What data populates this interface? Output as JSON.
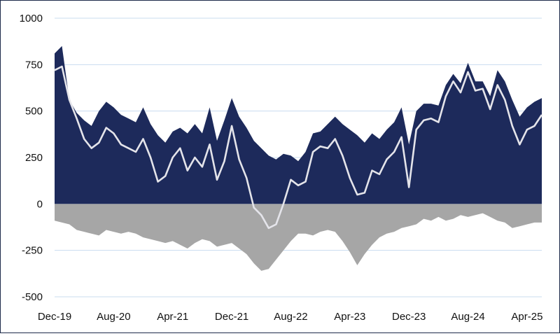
{
  "chart_data": {
    "type": "area",
    "title": "",
    "xlabel": "",
    "ylabel": "",
    "ylim": [
      -500,
      1000
    ],
    "yticks": [
      1000,
      750,
      500,
      250,
      0,
      -250,
      -500
    ],
    "xticks": [
      "Dec-19",
      "Aug-20",
      "Apr-21",
      "Dec-21",
      "Aug-22",
      "Apr-23",
      "Dec-23",
      "Aug-24",
      "Apr-25"
    ],
    "grid": true,
    "legend": "none",
    "colors": {
      "long": "#1d2a5b",
      "short": "#a6a6a6",
      "net": "#e4e4ea",
      "grid": "#c9dcef"
    },
    "x_dates": [
      "2019-12",
      "2020-01",
      "2020-02",
      "2020-03",
      "2020-04",
      "2020-05",
      "2020-06",
      "2020-07",
      "2020-08",
      "2020-09",
      "2020-10",
      "2020-11",
      "2020-12",
      "2021-01",
      "2021-02",
      "2021-03",
      "2021-04",
      "2021-05",
      "2021-06",
      "2021-07",
      "2021-08",
      "2021-09",
      "2021-10",
      "2021-11",
      "2021-12",
      "2022-01",
      "2022-02",
      "2022-03",
      "2022-04",
      "2022-05",
      "2022-06",
      "2022-07",
      "2022-08",
      "2022-09",
      "2022-10",
      "2022-11",
      "2022-12",
      "2023-01",
      "2023-02",
      "2023-03",
      "2023-04",
      "2023-05",
      "2023-06",
      "2023-07",
      "2023-08",
      "2023-09",
      "2023-10",
      "2023-11",
      "2023-12",
      "2024-01",
      "2024-02",
      "2024-03",
      "2024-04",
      "2024-05",
      "2024-06",
      "2024-07",
      "2024-08",
      "2024-09",
      "2024-10",
      "2024-11",
      "2024-12",
      "2025-01",
      "2025-02",
      "2025-03",
      "2025-04",
      "2025-05",
      "2025-06"
    ],
    "series": [
      {
        "values": [
          810,
          850,
          560,
          490,
          450,
          420,
          500,
          550,
          520,
          480,
          460,
          440,
          520,
          430,
          370,
          330,
          390,
          410,
          380,
          430,
          380,
          520,
          340,
          450,
          570,
          470,
          410,
          340,
          300,
          260,
          240,
          270,
          260,
          230,
          280,
          380,
          390,
          430,
          470,
          430,
          400,
          370,
          330,
          380,
          350,
          400,
          440,
          520,
          320,
          500,
          540,
          540,
          530,
          640,
          700,
          650,
          760,
          660,
          660,
          580,
          720,
          660,
          560,
          470,
          520,
          550,
          570
        ]
      },
      {
        "values": [
          -90,
          -100,
          -110,
          -140,
          -150,
          -160,
          -170,
          -140,
          -150,
          -160,
          -150,
          -160,
          -180,
          -190,
          -200,
          -210,
          -200,
          -220,
          -240,
          -210,
          -190,
          -200,
          -230,
          -220,
          -210,
          -240,
          -270,
          -320,
          -360,
          -350,
          -300,
          -250,
          -200,
          -160,
          -160,
          -170,
          -150,
          -140,
          -150,
          -200,
          -260,
          -330,
          -270,
          -220,
          -180,
          -160,
          -150,
          -130,
          -120,
          -110,
          -80,
          -90,
          -70,
          -90,
          -80,
          -60,
          -70,
          -60,
          -50,
          -70,
          -90,
          -100,
          -130,
          -120,
          -110,
          -100,
          -100
        ]
      },
      {
        "values": [
          720,
          740,
          560,
          460,
          350,
          300,
          330,
          410,
          380,
          320,
          300,
          280,
          350,
          250,
          120,
          150,
          250,
          300,
          180,
          250,
          200,
          320,
          130,
          230,
          420,
          240,
          140,
          -20,
          -60,
          -130,
          -110,
          0,
          130,
          100,
          120,
          280,
          310,
          300,
          350,
          260,
          140,
          50,
          60,
          180,
          160,
          240,
          280,
          360,
          90,
          400,
          450,
          460,
          440,
          580,
          660,
          600,
          710,
          610,
          620,
          510,
          640,
          560,
          420,
          320,
          400,
          420,
          480
        ]
      }
    ]
  }
}
